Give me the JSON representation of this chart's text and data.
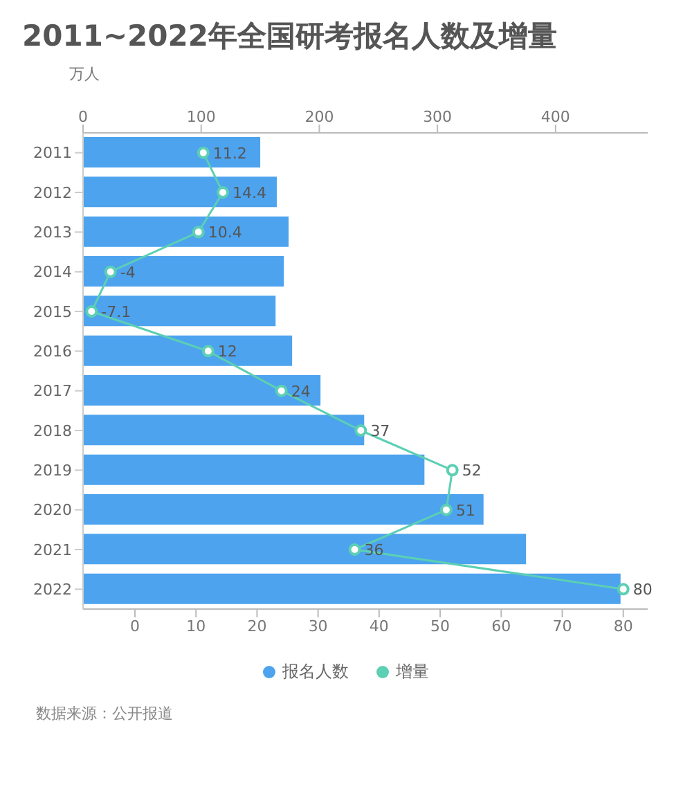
{
  "chart_data": {
    "type": "bar",
    "orientation": "horizontal",
    "title": "2011~2022年全国研考报名人数及增量",
    "subtitle": "万人",
    "categories": [
      "2011",
      "2012",
      "2013",
      "2014",
      "2015",
      "2016",
      "2017",
      "2018",
      "2019",
      "2020",
      "2021",
      "2022"
    ],
    "series": [
      {
        "name": "报名人数",
        "axis": "x2",
        "color": "#4da3ee",
        "values": [
          150,
          164,
          174,
          170,
          163,
          177,
          201,
          238,
          289,
          339,
          375,
          455
        ]
      },
      {
        "name": "增量",
        "type": "line",
        "color": "#5ccfb4",
        "marker": "circle",
        "values": [
          11.2,
          14.4,
          10.4,
          -4,
          -7.1,
          12,
          24,
          37,
          52,
          51,
          36,
          80
        ],
        "value_labels": [
          "11.2",
          "14.4",
          "10.4",
          "-4",
          "-7.1",
          "12",
          "24",
          "37",
          "52",
          "51",
          "36",
          "80"
        ]
      }
    ],
    "xlim": [
      -8.5,
      84
    ],
    "xticks": [
      0,
      10,
      20,
      30,
      40,
      50,
      60,
      70,
      80
    ],
    "x2lim": [
      0,
      478
    ],
    "x2ticks": [
      0,
      100,
      200,
      300,
      400
    ],
    "grid": false,
    "legend": "bottom",
    "annotations": [
      "数据来源：公开报道"
    ]
  }
}
